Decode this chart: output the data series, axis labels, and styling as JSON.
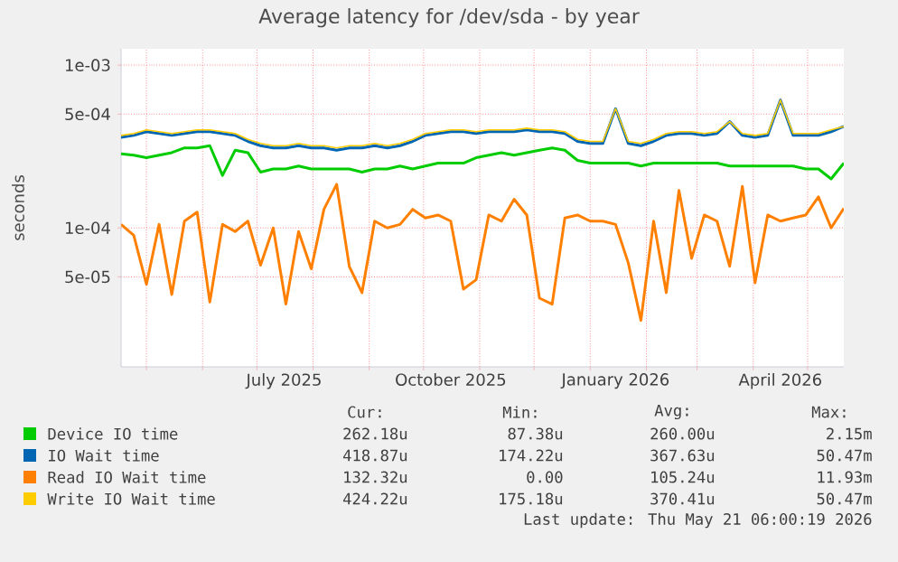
{
  "chart_data": {
    "type": "line",
    "title": "Average latency for /dev/sda - by year",
    "ylabel": "seconds",
    "log": "y",
    "grid": true,
    "legend": "bottom",
    "xlim": [
      "2025-04-17",
      "2026-05-21"
    ],
    "xticks": [
      {
        "value": "2025-05-01",
        "label": null
      },
      {
        "value": "2025-06-01",
        "label": null
      },
      {
        "value": "2025-07-01",
        "label": null
      },
      {
        "value": "2025-08-01",
        "label": null
      },
      {
        "value": "2025-09-01",
        "label": null
      },
      {
        "value": "2025-10-01",
        "label": null
      },
      {
        "value": "2025-11-01",
        "label": null
      },
      {
        "value": "2025-12-01",
        "label": null
      },
      {
        "value": "2026-01-01",
        "label": null
      },
      {
        "value": "2026-02-01",
        "label": null
      },
      {
        "value": "2026-03-01",
        "label": null
      },
      {
        "value": "2026-04-01",
        "label": null
      },
      {
        "value": "2026-05-01",
        "label": null
      },
      {
        "value": "2025-07-16",
        "label": "July 2025"
      },
      {
        "value": "2025-10-16",
        "label": "October 2025"
      },
      {
        "value": "2026-01-15",
        "label": "January 2026"
      },
      {
        "value": "2026-04-16",
        "label": "April 2026"
      }
    ],
    "ylim": [
      1.4e-05,
      0.00126
    ],
    "yticks": [
      {
        "value": 5e-05,
        "label": "5e-05"
      },
      {
        "value": 0.0001,
        "label": "1e-04"
      },
      {
        "value": 0.0005,
        "label": "5e-04"
      },
      {
        "value": 0.001,
        "label": "1e-03"
      }
    ],
    "x": [
      "2025-04-17",
      "2025-04-24",
      "2025-05-01",
      "2025-05-08",
      "2025-05-15",
      "2025-05-22",
      "2025-05-29",
      "2025-06-05",
      "2025-06-12",
      "2025-06-19",
      "2025-06-26",
      "2025-07-03",
      "2025-07-10",
      "2025-07-17",
      "2025-07-24",
      "2025-07-31",
      "2025-08-07",
      "2025-08-14",
      "2025-08-21",
      "2025-08-28",
      "2025-09-04",
      "2025-09-11",
      "2025-09-18",
      "2025-09-25",
      "2025-10-02",
      "2025-10-09",
      "2025-10-16",
      "2025-10-23",
      "2025-10-30",
      "2025-11-06",
      "2025-11-13",
      "2025-11-20",
      "2025-11-27",
      "2025-12-04",
      "2025-12-11",
      "2025-12-18",
      "2025-12-25",
      "2026-01-01",
      "2026-01-08",
      "2026-01-15",
      "2026-01-22",
      "2026-01-29",
      "2026-02-05",
      "2026-02-12",
      "2026-02-19",
      "2026-02-26",
      "2026-03-05",
      "2026-03-12",
      "2026-03-19",
      "2026-03-26",
      "2026-04-02",
      "2026-04-09",
      "2026-04-16",
      "2026-04-23",
      "2026-04-30",
      "2026-05-07",
      "2026-05-14",
      "2026-05-21"
    ],
    "series": [
      {
        "name": "Device IO time",
        "color": "#00cc00",
        "values": [
          0.000285,
          0.00028,
          0.00027,
          0.00028,
          0.00029,
          0.00031,
          0.00031,
          0.00032,
          0.00021,
          0.0003,
          0.00029,
          0.00022,
          0.00023,
          0.00023,
          0.00024,
          0.00023,
          0.00023,
          0.00023,
          0.00023,
          0.00022,
          0.00023,
          0.00023,
          0.00024,
          0.00023,
          0.00024,
          0.00025,
          0.00025,
          0.00025,
          0.00027,
          0.00028,
          0.00029,
          0.00028,
          0.00029,
          0.0003,
          0.00031,
          0.0003,
          0.00026,
          0.00025,
          0.00025,
          0.00025,
          0.00025,
          0.00024,
          0.00025,
          0.00025,
          0.00025,
          0.00025,
          0.00025,
          0.00025,
          0.00024,
          0.00024,
          0.00024,
          0.00024,
          0.00024,
          0.00024,
          0.00023,
          0.00023,
          0.0002,
          0.00025
        ]
      },
      {
        "name": "IO Wait time",
        "color": "#0066b3",
        "values": [
          0.00036,
          0.00037,
          0.00039,
          0.00038,
          0.00037,
          0.00038,
          0.00039,
          0.00039,
          0.00038,
          0.00037,
          0.00034,
          0.00032,
          0.00031,
          0.00031,
          0.00032,
          0.00031,
          0.00031,
          0.0003,
          0.00031,
          0.00031,
          0.00032,
          0.00031,
          0.00032,
          0.00034,
          0.00037,
          0.00038,
          0.00039,
          0.00039,
          0.00038,
          0.00039,
          0.00039,
          0.00039,
          0.0004,
          0.00039,
          0.00039,
          0.00038,
          0.00034,
          0.00033,
          0.00033,
          0.00054,
          0.00033,
          0.00032,
          0.00034,
          0.00037,
          0.00038,
          0.00038,
          0.00037,
          0.00038,
          0.00045,
          0.00037,
          0.00036,
          0.00037,
          0.00061,
          0.00037,
          0.00037,
          0.00037,
          0.00039,
          0.00042
        ]
      },
      {
        "name": "Read IO Wait time",
        "color": "#ff8000",
        "values": [
          0.000105,
          9e-05,
          4.5e-05,
          0.000105,
          3.9e-05,
          0.00011,
          0.000125,
          3.5e-05,
          0.000105,
          9.5e-05,
          0.00011,
          5.9e-05,
          0.0001,
          3.4e-05,
          9.5e-05,
          5.6e-05,
          0.00013,
          0.000185,
          5.8e-05,
          4e-05,
          0.00011,
          0.0001,
          0.000105,
          0.00013,
          0.000115,
          0.00012,
          0.00011,
          4.2e-05,
          4.8e-05,
          0.00012,
          0.00011,
          0.00015,
          0.00012,
          3.7e-05,
          3.4e-05,
          0.000115,
          0.00012,
          0.00011,
          0.00011,
          0.000105,
          6.1e-05,
          2.7e-05,
          0.00011,
          4e-05,
          0.00017,
          6.5e-05,
          0.00012,
          0.00011,
          5.8e-05,
          0.00018,
          4.6e-05,
          0.00012,
          0.00011,
          0.000115,
          0.00012,
          0.000155,
          0.0001,
          0.000132
        ]
      },
      {
        "name": "Write IO Wait time",
        "color": "#ffcc00",
        "values": [
          0.00037,
          0.00038,
          0.0004,
          0.00039,
          0.00038,
          0.00039,
          0.0004,
          0.0004,
          0.00039,
          0.00038,
          0.00035,
          0.00033,
          0.00032,
          0.00032,
          0.00033,
          0.00032,
          0.00032,
          0.00031,
          0.00032,
          0.00032,
          0.00033,
          0.00032,
          0.00033,
          0.00035,
          0.00038,
          0.00039,
          0.0004,
          0.0004,
          0.00039,
          0.0004,
          0.0004,
          0.0004,
          0.00041,
          0.0004,
          0.0004,
          0.00039,
          0.00035,
          0.00034,
          0.00034,
          0.00054,
          0.00034,
          0.00033,
          0.00035,
          0.00038,
          0.00039,
          0.00039,
          0.00038,
          0.00039,
          0.00045,
          0.00038,
          0.00037,
          0.00038,
          0.00061,
          0.00038,
          0.00038,
          0.00038,
          0.0004,
          0.00042
        ]
      }
    ],
    "annotations": [
      "Cur:",
      "Min:",
      "Avg:",
      "Max:",
      "262.18u",
      "87.38u",
      "260.00u",
      "2.15m",
      "418.87u",
      "174.22u",
      "367.63u",
      "50.47m",
      "132.32u",
      "0.00",
      "105.24u",
      "11.93m",
      "424.22u",
      "175.18u",
      "370.41u",
      "50.47m",
      "Last update: Thu May 21 06:00:19 2026"
    ]
  }
}
